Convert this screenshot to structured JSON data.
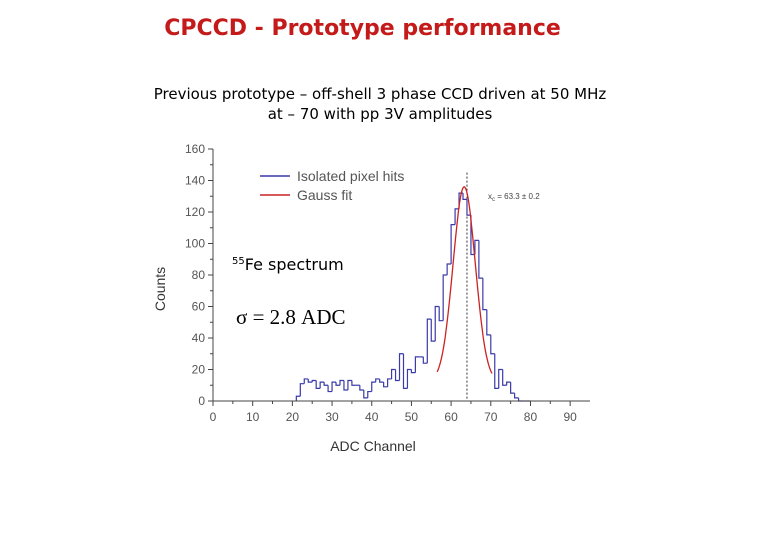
{
  "slide": {
    "title": "CPCCD - Prototype performance",
    "subtitle_line1": "Previous prototype – off-shell 3 phase CCD driven at 50 MHz",
    "subtitle_line2": "at – 70 with pp 3V amplitudes"
  },
  "colors": {
    "title": "#c41a1a",
    "histogram": "#3a3aa8",
    "fit": "#cc2222",
    "text": "#000000"
  },
  "chart_data": {
    "type": "histogram",
    "xlabel": "ADC Channel",
    "ylabel": "Counts",
    "xlim": [
      0,
      95
    ],
    "ylim": [
      0,
      160
    ],
    "xticks": [
      0,
      10,
      20,
      30,
      40,
      50,
      60,
      70,
      80,
      90
    ],
    "yticks": [
      0,
      20,
      40,
      60,
      80,
      100,
      120,
      140,
      160
    ],
    "legend": {
      "position": "top-center",
      "entries": [
        {
          "name": "Isolated pixel hits",
          "color": "#3a3aa8"
        },
        {
          "name": "Gauss fit",
          "color": "#cc2222"
        }
      ]
    },
    "fit_label": "x_c = 63.3 ± 0.2",
    "fit_label_main": "x",
    "fit_label_sub": "c",
    "fit_label_rest": " = 63.3 ± 0.2",
    "centroid_line_x": 64,
    "annotation_isotope_super": "55",
    "annotation_isotope_text": "Fe spectrum",
    "annotation_sigma": "σ = 2.8 ADC",
    "histogram": {
      "bin_width": 1,
      "bin_starts": [
        21,
        22,
        23,
        24,
        25,
        26,
        27,
        28,
        29,
        30,
        31,
        32,
        33,
        34,
        35,
        36,
        37,
        38,
        39,
        40,
        41,
        42,
        43,
        44,
        45,
        46,
        47,
        48,
        49,
        50,
        51,
        52,
        53,
        54,
        55,
        56,
        57,
        58,
        59,
        60,
        61,
        62,
        63,
        64,
        65,
        66,
        67,
        68,
        69,
        70,
        71,
        72,
        73,
        74,
        75,
        76,
        77,
        78,
        79
      ],
      "counts": [
        3,
        11,
        14,
        12,
        13,
        8,
        12,
        10,
        6,
        12,
        10,
        13,
        7,
        13,
        10,
        10,
        7,
        2,
        6,
        12,
        14,
        12,
        9,
        14,
        20,
        13,
        30,
        8,
        20,
        18,
        28,
        28,
        24,
        52,
        38,
        60,
        51,
        80,
        87,
        112,
        122,
        132,
        128,
        118,
        93,
        102,
        78,
        58,
        42,
        30,
        8,
        20,
        10,
        12,
        5,
        2,
        0,
        0,
        0
      ]
    },
    "gauss_fit": {
      "mean": 63.3,
      "sigma": 2.8,
      "amplitude": 124,
      "baseline": 12
    }
  }
}
